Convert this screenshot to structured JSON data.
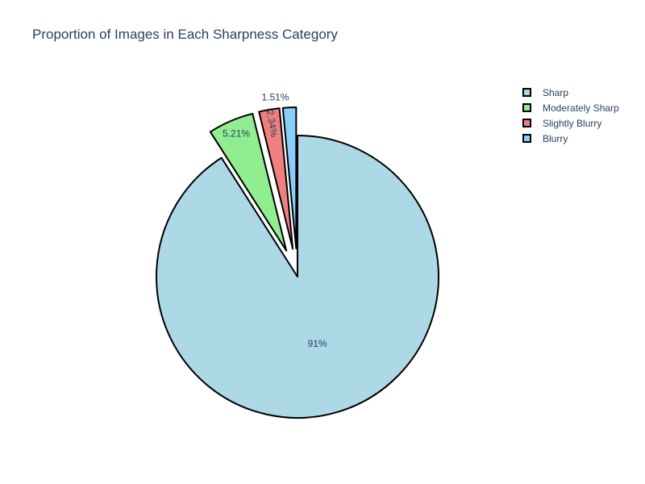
{
  "chart_data": {
    "type": "pie",
    "title": "Proportion of Images in Each Sharpness Category",
    "legend_position": "top-right",
    "slices": [
      {
        "label": "Sharp",
        "value": 90.94,
        "text": "91%",
        "color": "#add8e6"
      },
      {
        "label": "Moderately Sharp",
        "value": 5.21,
        "text": "5.21%",
        "color": "#90ee90"
      },
      {
        "label": "Slightly Blurry",
        "value": 2.34,
        "text": "2.34%",
        "color": "#f08080"
      },
      {
        "label": "Blurry",
        "value": 1.51,
        "text": "1.51%",
        "color": "#87cefa"
      }
    ]
  }
}
